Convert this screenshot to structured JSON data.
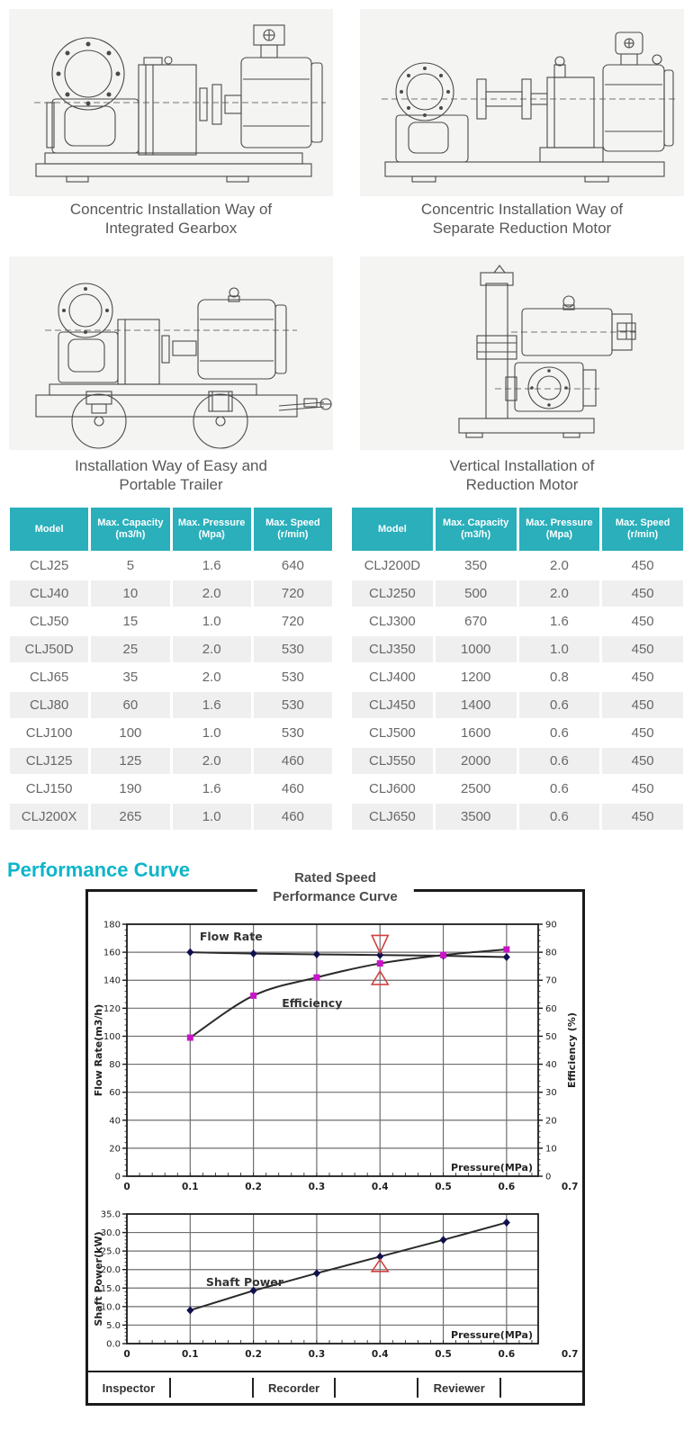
{
  "colors": {
    "teal_header": "#2aafbb",
    "section_heading": "#0fb5c9",
    "row_alt": "#efefef",
    "chart_red": "#d24040",
    "marker_navy": "#10104f",
    "marker_magenta": "#c715c7"
  },
  "drawings": {
    "panels": [
      {
        "caption_line1": "Concentric Installation Way of",
        "caption_line2": "Integrated Gearbox"
      },
      {
        "caption_line1": "Concentric Installation Way of",
        "caption_line2": "Separate Reduction Motor"
      },
      {
        "caption_line1": "Installation Way of Easy and",
        "caption_line2": "Portable Trailer"
      },
      {
        "caption_line1": "Vertical Installation of",
        "caption_line2": "Reduction Motor"
      }
    ]
  },
  "tables": {
    "headers": [
      {
        "line1": "Model",
        "line2": ""
      },
      {
        "line1": "Max. Capacity",
        "line2": "(m3/h)"
      },
      {
        "line1": "Max. Pressure",
        "line2": "(Mpa)"
      },
      {
        "line1": "Max. Speed",
        "line2": "(r/min)"
      }
    ],
    "left_rows": [
      [
        "CLJ25",
        "5",
        "1.6",
        "640"
      ],
      [
        "CLJ40",
        "10",
        "2.0",
        "720"
      ],
      [
        "CLJ50",
        "15",
        "1.0",
        "720"
      ],
      [
        "CLJ50D",
        "25",
        "2.0",
        "530"
      ],
      [
        "CLJ65",
        "35",
        "2.0",
        "530"
      ],
      [
        "CLJ80",
        "60",
        "1.6",
        "530"
      ],
      [
        "CLJ100",
        "100",
        "1.0",
        "530"
      ],
      [
        "CLJ125",
        "125",
        "2.0",
        "460"
      ],
      [
        "CLJ150",
        "190",
        "1.6",
        "460"
      ],
      [
        "CLJ200X",
        "265",
        "1.0",
        "460"
      ]
    ],
    "right_rows": [
      [
        "CLJ200D",
        "350",
        "2.0",
        "450"
      ],
      [
        "CLJ250",
        "500",
        "2.0",
        "450"
      ],
      [
        "CLJ300",
        "670",
        "1.6",
        "450"
      ],
      [
        "CLJ350",
        "1000",
        "1.0",
        "450"
      ],
      [
        "CLJ400",
        "1200",
        "0.8",
        "450"
      ],
      [
        "CLJ450",
        "1400",
        "0.6",
        "450"
      ],
      [
        "CLJ500",
        "1600",
        "0.6",
        "450"
      ],
      [
        "CLJ550",
        "2000",
        "0.6",
        "450"
      ],
      [
        "CLJ600",
        "2500",
        "0.6",
        "450"
      ],
      [
        "CLJ650",
        "3500",
        "0.6",
        "450"
      ]
    ]
  },
  "performance": {
    "section_title": "Performance Curve",
    "figure_title_line1": "Rated Speed",
    "figure_title_line2": "Performance Curve",
    "footer": [
      "Inspector",
      "",
      "Recorder",
      "",
      "Reviewer",
      ""
    ]
  },
  "chart_data": [
    {
      "type": "line",
      "title": "Rated Speed Performance Curve",
      "xlabel": "Pressure(MPa)",
      "ylabel": "Flow Rate(m3/h)",
      "ylabel_right": "Efficiency (%)",
      "xlim": [
        0,
        0.65
      ],
      "xtick_labels": [
        0,
        0.1,
        0.2,
        0.3,
        0.4,
        0.5,
        0.6,
        0.7
      ],
      "xgrid": [
        0.1,
        0.2,
        0.3,
        0.4,
        0.5,
        0.6
      ],
      "ylim": [
        0,
        180
      ],
      "ytick_step": 20,
      "ylim_right": [
        0,
        90
      ],
      "ytick_step_right": 10,
      "grid": true,
      "legend_position": "inline-labels",
      "series": [
        {
          "name": "Flow Rate",
          "axis": "left",
          "marker": "diamond",
          "marker_color": "#10104f",
          "line_color": "#2a2a2a",
          "smooth": false,
          "x": [
            0.1,
            0.2,
            0.3,
            0.4,
            0.5,
            0.6
          ],
          "y": [
            160,
            159,
            158.5,
            158,
            157.5,
            156.5
          ],
          "label_pos": {
            "x": 0.115,
            "y": 168.5
          }
        },
        {
          "name": "Efficiency",
          "axis": "right",
          "marker": "square",
          "marker_color": "#c715c7",
          "line_color": "#2a2a2a",
          "smooth": true,
          "x": [
            0.1,
            0.2,
            0.3,
            0.4,
            0.5,
            0.6
          ],
          "y": [
            49.5,
            64.5,
            71,
            76,
            79,
            81
          ],
          "label_pos": {
            "x": 0.245,
            "y": 60.5
          }
        }
      ],
      "annotations": [
        {
          "shape": "triangle_down",
          "x": 0.4,
          "y_tip": 159.5,
          "y_base": 172,
          "color": "#d24040"
        },
        {
          "shape": "triangle_up",
          "x": 0.4,
          "y_tip": 146.5,
          "y_base": 137,
          "color": "#d24040"
        }
      ]
    },
    {
      "type": "line",
      "xlabel": "Pressure(MPa)",
      "ylabel": "Shaft Power(kW)",
      "xlim": [
        0,
        0.65
      ],
      "xtick_labels": [
        0,
        0.1,
        0.2,
        0.3,
        0.4,
        0.5,
        0.6,
        0.7
      ],
      "xgrid": [
        0.1,
        0.2,
        0.3,
        0.4,
        0.5,
        0.6
      ],
      "ylim": [
        0,
        35
      ],
      "ytick_step": 5,
      "ytick_decimals": 1,
      "grid": true,
      "series": [
        {
          "name": "Shaft Power",
          "axis": "left",
          "marker": "diamond",
          "marker_color": "#10104f",
          "line_color": "#2a2a2a",
          "smooth": false,
          "x": [
            0.1,
            0.2,
            0.3,
            0.4,
            0.5,
            0.6
          ],
          "y": [
            9,
            14.3,
            19,
            23.5,
            28,
            32.7
          ],
          "label_pos": {
            "x": 0.125,
            "y": 15.5
          }
        }
      ],
      "annotations": [
        {
          "shape": "triangle_up",
          "x": 0.4,
          "y_tip": 22.7,
          "y_base": 19.5,
          "color": "#d24040"
        }
      ]
    }
  ]
}
